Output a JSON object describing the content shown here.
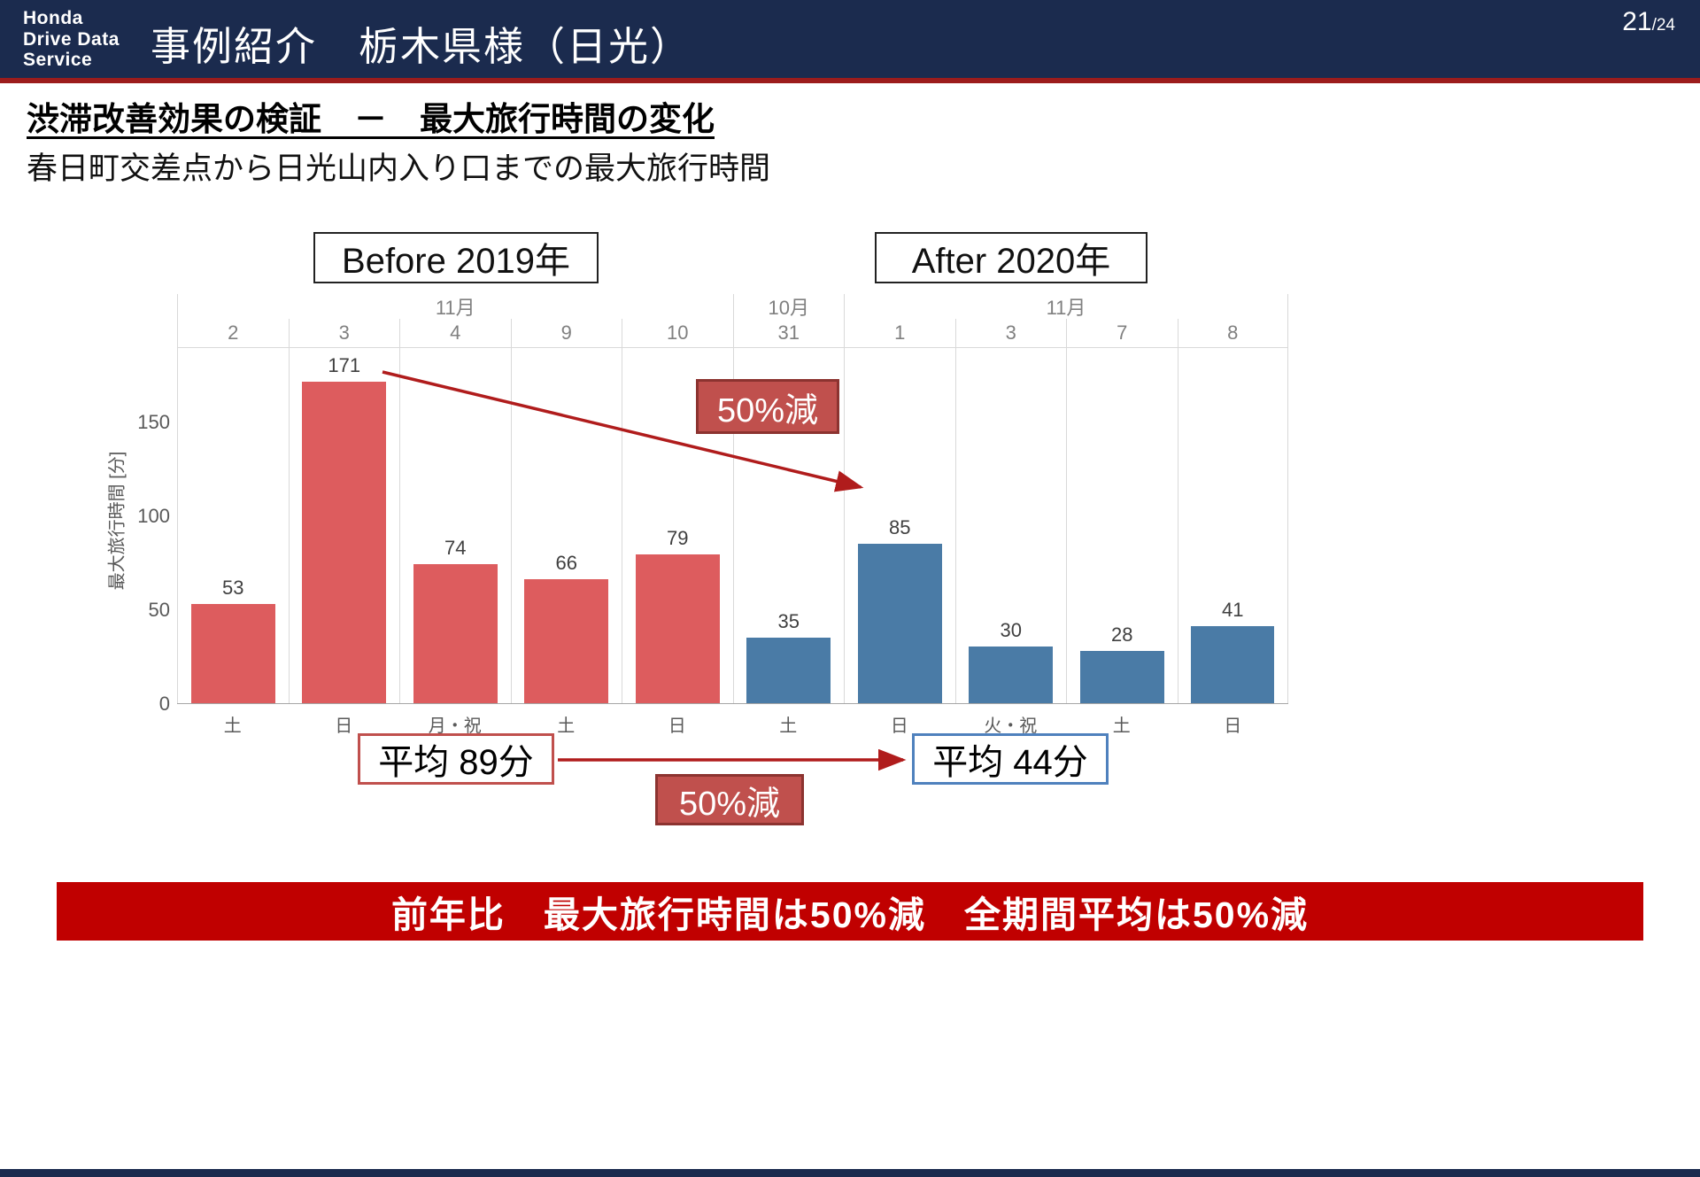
{
  "header": {
    "logo_lines": [
      "Honda",
      "Drive Data",
      "Service"
    ],
    "title": "事例紹介　栃木県様（日光）",
    "page_current": "21",
    "page_total": "/24"
  },
  "section": {
    "heading": "渋滞改善効果の検証　－　最大旅行時間の変化",
    "subheading": "春日町交差点から日光山内入り口までの最大旅行時間"
  },
  "chart_data": {
    "type": "bar",
    "title": "",
    "ylabel": "最大旅行時間 [分]",
    "ylim": [
      0,
      190
    ],
    "yticks": [
      0,
      50,
      100,
      150
    ],
    "grid": "vertical-only",
    "groups": [
      {
        "label": "Before 2019年",
        "color": "#dd5c5e",
        "months": [
          {
            "label": "11月",
            "span": 5
          }
        ],
        "bars": [
          {
            "date": "2",
            "day": "土",
            "value": 53
          },
          {
            "date": "3",
            "day": "日",
            "value": 171
          },
          {
            "date": "4",
            "day": "月・祝",
            "value": 74
          },
          {
            "date": "9",
            "day": "土",
            "value": 66
          },
          {
            "date": "10",
            "day": "日",
            "value": 79
          }
        ],
        "average_label": "平均 89分"
      },
      {
        "label": "After 2020年",
        "color": "#4a7ba6",
        "months": [
          {
            "label": "10月",
            "span": 1
          },
          {
            "label": "11月",
            "span": 4
          }
        ],
        "bars": [
          {
            "date": "31",
            "day": "土",
            "value": 35
          },
          {
            "date": "1",
            "day": "日",
            "value": 85
          },
          {
            "date": "3",
            "day": "火・祝",
            "value": 30
          },
          {
            "date": "7",
            "day": "土",
            "value": 28
          },
          {
            "date": "8",
            "day": "日",
            "value": 41
          }
        ],
        "average_label": "平均 44分"
      }
    ],
    "annotations": {
      "reduction_top": "50%減",
      "reduction_bottom": "50%減"
    }
  },
  "footer": {
    "banner": "前年比　最大旅行時間は50%減　全期間平均は50%減"
  },
  "colors": {
    "header_navy": "#1b2b4e",
    "header_redline": "#9c1c1c",
    "bar_red": "#dd5c5e",
    "bar_blue": "#4a7ba6",
    "badge_red_bg": "#c0504d",
    "badge_red_border": "#8c3330",
    "arrow_red": "#b01c1c",
    "avg_before_border": "#c0504d",
    "avg_after_border": "#4f81bd",
    "banner_red": "#c00000"
  }
}
